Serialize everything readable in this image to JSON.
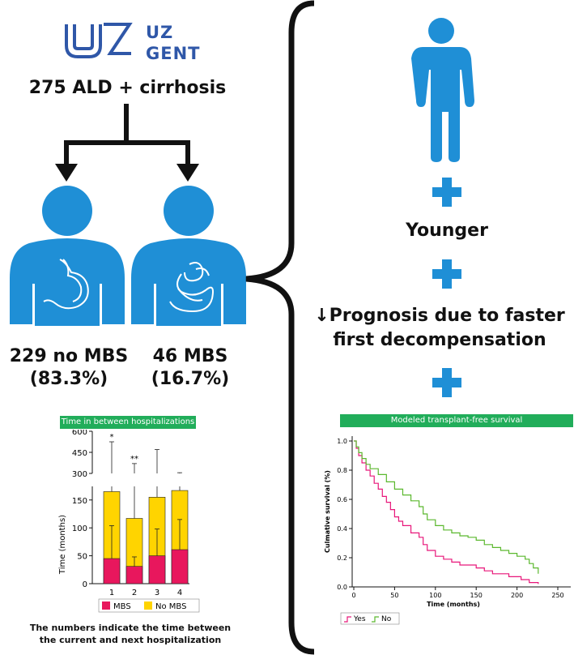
{
  "colors": {
    "blue": "#1f8fd6",
    "logo_blue": "#2f57a8",
    "green_bar": "#21ad5a",
    "mbs": "#e8175d",
    "no_mbs": "#ffd400",
    "surv_yes": "#e8177a",
    "surv_no": "#5bb82e"
  },
  "logo": {
    "line1": "UZ",
    "line2": "GENT"
  },
  "cohort_title": "275 ALD + cirrhosis",
  "group_no_mbs": {
    "label": "229 no MBS",
    "pct": "(83.3%)"
  },
  "group_mbs": {
    "label": "46 MBS",
    "pct": "(16.7%)"
  },
  "findings": {
    "younger": "Younger",
    "prognosis_line1": "Prognosis due to faster",
    "prognosis_line2": "first decompensation",
    "arrow_glyph": "↓"
  },
  "hosp_chart_title": "Time in between hospitalizations",
  "hosp_caption_line1": "The numbers indicate the time between",
  "hosp_caption_line2": "the current and next hospitalization",
  "surv_chart_title": "Modeled transplant-free survival",
  "chart_data": [
    {
      "type": "bar",
      "title": "Time in between hospitalizations",
      "ylabel": "Time (months)",
      "xlabel": "",
      "categories": [
        "1",
        "2",
        "3",
        "4"
      ],
      "stacked": true,
      "axis_break": true,
      "y_ticks_lower": [
        0,
        50,
        100,
        150
      ],
      "y_ticks_upper": [
        300,
        450,
        600
      ],
      "series": [
        {
          "name": "MBS",
          "values": [
            45,
            31,
            50,
            61
          ],
          "error_upper": [
            104,
            48,
            98,
            115
          ]
        },
        {
          "name": "No MBS",
          "values": [
            165,
            117,
            155,
            167
          ],
          "error_upper": [
            525,
            370,
            470,
            305
          ]
        }
      ],
      "significance": [
        {
          "category": "1",
          "label": "*"
        },
        {
          "category": "2",
          "label": "**"
        }
      ],
      "legend": [
        "MBS",
        "No MBS"
      ]
    },
    {
      "type": "line",
      "title": "Modeled transplant-free survival",
      "xlabel": "Time (months)",
      "ylabel": "Culmative survival (%)",
      "xlim": [
        0,
        250
      ],
      "ylim": [
        0,
        1.0
      ],
      "x_ticks": [
        0,
        50,
        100,
        150,
        200,
        250
      ],
      "y_ticks": [
        "0.0",
        "0.2",
        "0.4",
        "0.6",
        "0.8",
        "1.0"
      ],
      "legend": [
        "Yes",
        "No"
      ],
      "series": [
        {
          "name": "Yes",
          "step": true,
          "x": [
            0,
            3,
            6,
            10,
            15,
            20,
            25,
            30,
            35,
            40,
            45,
            50,
            55,
            60,
            70,
            80,
            85,
            90,
            100,
            110,
            120,
            130,
            150,
            160,
            170,
            190,
            205,
            215,
            226
          ],
          "y": [
            1.0,
            0.95,
            0.9,
            0.85,
            0.8,
            0.76,
            0.71,
            0.67,
            0.62,
            0.58,
            0.53,
            0.48,
            0.45,
            0.42,
            0.37,
            0.34,
            0.29,
            0.25,
            0.21,
            0.19,
            0.17,
            0.15,
            0.13,
            0.11,
            0.09,
            0.07,
            0.05,
            0.03,
            0.02
          ]
        },
        {
          "name": "No",
          "step": true,
          "x": [
            0,
            3,
            6,
            10,
            15,
            20,
            30,
            40,
            50,
            60,
            70,
            80,
            85,
            90,
            100,
            110,
            120,
            130,
            140,
            150,
            160,
            170,
            180,
            190,
            200,
            210,
            215,
            220,
            226
          ],
          "y": [
            1.0,
            0.96,
            0.92,
            0.88,
            0.84,
            0.81,
            0.77,
            0.72,
            0.67,
            0.63,
            0.59,
            0.55,
            0.5,
            0.46,
            0.42,
            0.39,
            0.37,
            0.35,
            0.34,
            0.32,
            0.29,
            0.27,
            0.25,
            0.23,
            0.21,
            0.19,
            0.16,
            0.13,
            0.09
          ]
        }
      ]
    }
  ]
}
